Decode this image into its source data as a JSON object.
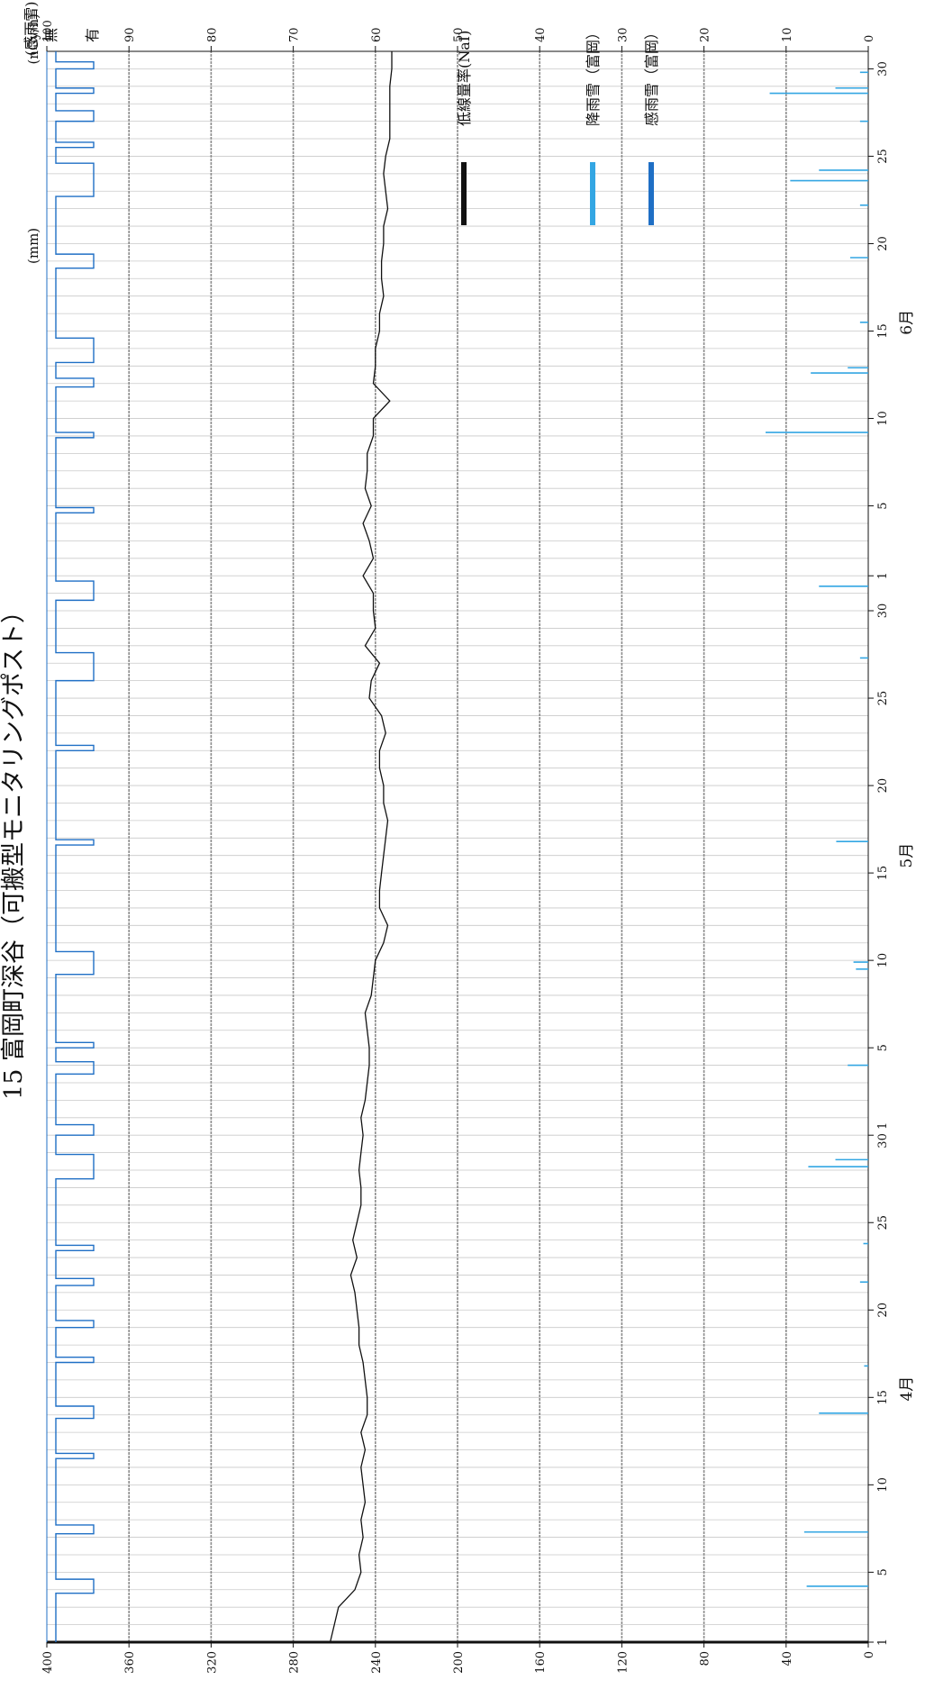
{
  "chart_data": {
    "type": "line",
    "title": "15 富岡町深谷（可搬型モニタリングポスト）",
    "left_axis": {
      "unit": "(nGy/h)",
      "ylim": [
        0,
        400
      ],
      "ticks": [
        0,
        40,
        80,
        120,
        160,
        200,
        240,
        280,
        320,
        360,
        400
      ]
    },
    "right_axis": {
      "unit": "(mm)",
      "ylim": [
        0,
        100
      ],
      "ticks": [
        0,
        10,
        20,
        30,
        40,
        50,
        60,
        70,
        80,
        90,
        100
      ]
    },
    "rain_flag_axis": {
      "title": "(感雨雪)",
      "levels": [
        "無",
        "有"
      ]
    },
    "months": [
      "4月",
      "5月",
      "6月"
    ],
    "x_tick_labels": [
      "1",
      "5",
      "10",
      "15",
      "20",
      "25",
      "30 1",
      "5",
      "10",
      "15",
      "20",
      "25",
      "30",
      "1",
      "5",
      "10",
      "15",
      "20",
      "25",
      "30"
    ],
    "x_tick_days": [
      1,
      5,
      10,
      15,
      20,
      25,
      30,
      35,
      40,
      45,
      50,
      55,
      60,
      62,
      66,
      71,
      76,
      81,
      86,
      91
    ],
    "x_range_days": [
      1,
      92
    ],
    "series": [
      {
        "name": "低線量率(NaI)",
        "color": "#111111",
        "axis": "left",
        "x_days": [
          1,
          2,
          3,
          4,
          5,
          6,
          7,
          8,
          9,
          10,
          11,
          12,
          13,
          14,
          15,
          16,
          17,
          18,
          19,
          20,
          21,
          22,
          23,
          24,
          25,
          26,
          27,
          28,
          29,
          30,
          31,
          32,
          33,
          34,
          35,
          36,
          37,
          38,
          39,
          40,
          41,
          42,
          43,
          44,
          45,
          46,
          47,
          48,
          49,
          50,
          51,
          52,
          53,
          54,
          55,
          56,
          57,
          58,
          59,
          60,
          61,
          62,
          63,
          64,
          65,
          66,
          67,
          68,
          69,
          70,
          71,
          72,
          73,
          74,
          75,
          76,
          77,
          78,
          79,
          80,
          81,
          82,
          83,
          84,
          85,
          86,
          87,
          88,
          89,
          90,
          91,
          92
        ],
        "values": [
          262,
          260,
          258,
          250,
          247,
          248,
          246,
          247,
          245,
          246,
          247,
          245,
          247,
          244,
          244,
          245,
          246,
          248,
          248,
          249,
          250,
          252,
          249,
          251,
          249,
          247,
          247,
          248,
          247,
          246,
          247,
          245,
          244,
          243,
          243,
          244,
          245,
          242,
          241,
          240,
          236,
          234,
          238,
          238,
          237,
          236,
          235,
          234,
          236,
          236,
          238,
          238,
          235,
          237,
          243,
          242,
          238,
          245,
          240,
          241,
          241,
          246,
          241,
          243,
          246,
          242,
          245,
          244,
          244,
          241,
          241,
          233,
          241,
          240,
          240,
          238,
          238,
          236,
          237,
          237,
          236,
          236,
          234,
          235,
          236,
          235,
          233,
          233,
          233,
          233,
          232,
          232
        ]
      },
      {
        "name": "降雨雪（富岡）",
        "color": "#33a6e3",
        "axis": "right",
        "events": [
          {
            "day": 4.2,
            "mm": 7.5
          },
          {
            "day": 7.3,
            "mm": 7.8
          },
          {
            "day": 14.1,
            "mm": 6.0
          },
          {
            "day": 16.8,
            "mm": 0.5
          },
          {
            "day": 21.6,
            "mm": 1.0
          },
          {
            "day": 23.8,
            "mm": 0.6
          },
          {
            "day": 28.2,
            "mm": 7.3
          },
          {
            "day": 28.6,
            "mm": 4.0
          },
          {
            "day": 34.0,
            "mm": 2.5
          },
          {
            "day": 39.5,
            "mm": 1.5
          },
          {
            "day": 39.9,
            "mm": 1.8
          },
          {
            "day": 46.8,
            "mm": 3.9
          },
          {
            "day": 57.3,
            "mm": 1.0
          },
          {
            "day": 61.4,
            "mm": 6.0
          },
          {
            "day": 70.2,
            "mm": 12.5
          },
          {
            "day": 73.6,
            "mm": 7.0
          },
          {
            "day": 73.9,
            "mm": 2.5
          },
          {
            "day": 76.5,
            "mm": 1.0
          },
          {
            "day": 80.2,
            "mm": 2.2
          },
          {
            "day": 83.2,
            "mm": 1.0
          },
          {
            "day": 84.6,
            "mm": 9.5
          },
          {
            "day": 85.2,
            "mm": 6.0
          },
          {
            "day": 88.0,
            "mm": 1.0
          },
          {
            "day": 89.6,
            "mm": 12.0
          },
          {
            "day": 89.9,
            "mm": 4.0
          },
          {
            "day": 90.8,
            "mm": 1.0
          }
        ]
      },
      {
        "name": "感雨雪（富岡）",
        "color": "#1f6fc5",
        "axis": "flag",
        "wet_intervals": [
          [
            3.8,
            4.6
          ],
          [
            7.2,
            7.7
          ],
          [
            11.5,
            11.8
          ],
          [
            13.8,
            14.5
          ],
          [
            17.0,
            17.3
          ],
          [
            19.0,
            19.4
          ],
          [
            21.4,
            21.8
          ],
          [
            23.4,
            23.7
          ],
          [
            27.5,
            28.9
          ],
          [
            30.0,
            30.6
          ],
          [
            33.5,
            34.2
          ],
          [
            35.0,
            35.3
          ],
          [
            39.2,
            40.5
          ],
          [
            46.6,
            46.9
          ],
          [
            52.0,
            52.3
          ],
          [
            56.0,
            57.6
          ],
          [
            60.6,
            61.7
          ],
          [
            65.6,
            65.9
          ],
          [
            69.9,
            70.2
          ],
          [
            72.8,
            73.3
          ],
          [
            74.2,
            75.6
          ],
          [
            79.6,
            80.4
          ],
          [
            83.7,
            85.6
          ],
          [
            86.5,
            86.8
          ],
          [
            88.0,
            88.6
          ],
          [
            89.6,
            89.9
          ],
          [
            91.0,
            91.4
          ]
        ]
      }
    ],
    "grid": true,
    "legend": "right"
  }
}
